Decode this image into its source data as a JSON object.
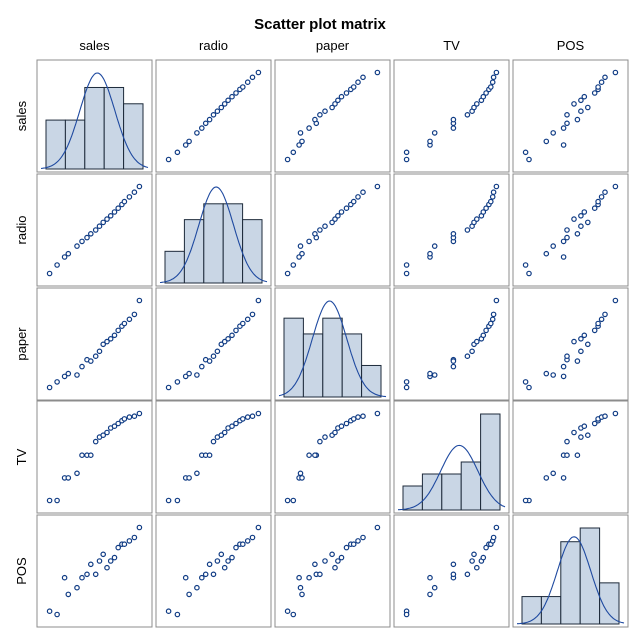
{
  "chart_data": {
    "type": "scatter",
    "title": "Scatter plot matrix",
    "variables": [
      "sales",
      "radio",
      "paper",
      "TV",
      "POS"
    ],
    "observations": {
      "sales": [
        60,
        66,
        72,
        75,
        82,
        86,
        90,
        93,
        97,
        100,
        103,
        106,
        109,
        112,
        115,
        118,
        120,
        124,
        128,
        132
      ],
      "radio": [
        310,
        328,
        345,
        352,
        368,
        378,
        386,
        394,
        402,
        410,
        418,
        425,
        432,
        440,
        448,
        456,
        462,
        472,
        482,
        494
      ],
      "paper": [
        80,
        88,
        96,
        100,
        98,
        110,
        120,
        118,
        125,
        132,
        142,
        146,
        150,
        155,
        162,
        168,
        172,
        178,
        185,
        205
      ],
      "TV": [
        100,
        100,
        125,
        125,
        130,
        150,
        150,
        150,
        165,
        170,
        172,
        175,
        180,
        182,
        185,
        188,
        190,
        192,
        193,
        196
      ],
      "POS": [
        0.5,
        0.4,
        1.5,
        1.0,
        1.2,
        1.5,
        1.6,
        1.9,
        1.6,
        2.0,
        2.2,
        1.8,
        2.0,
        2.1,
        2.4,
        2.5,
        2.5,
        2.6,
        2.7,
        3.0
      ]
    },
    "grid": false,
    "diagonal": "histogram with normal density curve"
  }
}
